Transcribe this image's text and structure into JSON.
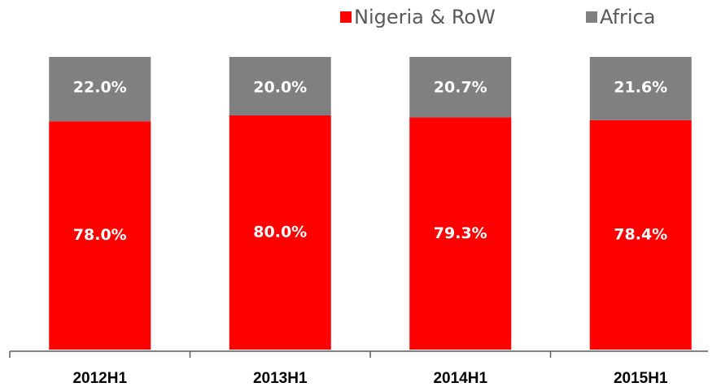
{
  "chart_data": {
    "type": "stacked_bar",
    "categories": [
      "2012H1",
      "2013H1",
      "2014H1",
      "2015H1"
    ],
    "series": [
      {
        "name": "Nigeria & RoW",
        "color": "#ff0000",
        "values": [
          78.0,
          80.0,
          79.3,
          78.4
        ],
        "value_labels": [
          "78.0%",
          "80.0%",
          "79.3%",
          "78.4%"
        ]
      },
      {
        "name": "Africa",
        "color": "#808080",
        "values": [
          22.0,
          20.0,
          20.7,
          21.6
        ],
        "value_labels": [
          "22.0%",
          "20.0%",
          "20.7%",
          "21.6%"
        ]
      }
    ],
    "ylim": [
      0,
      100
    ],
    "legend": "top-right"
  }
}
